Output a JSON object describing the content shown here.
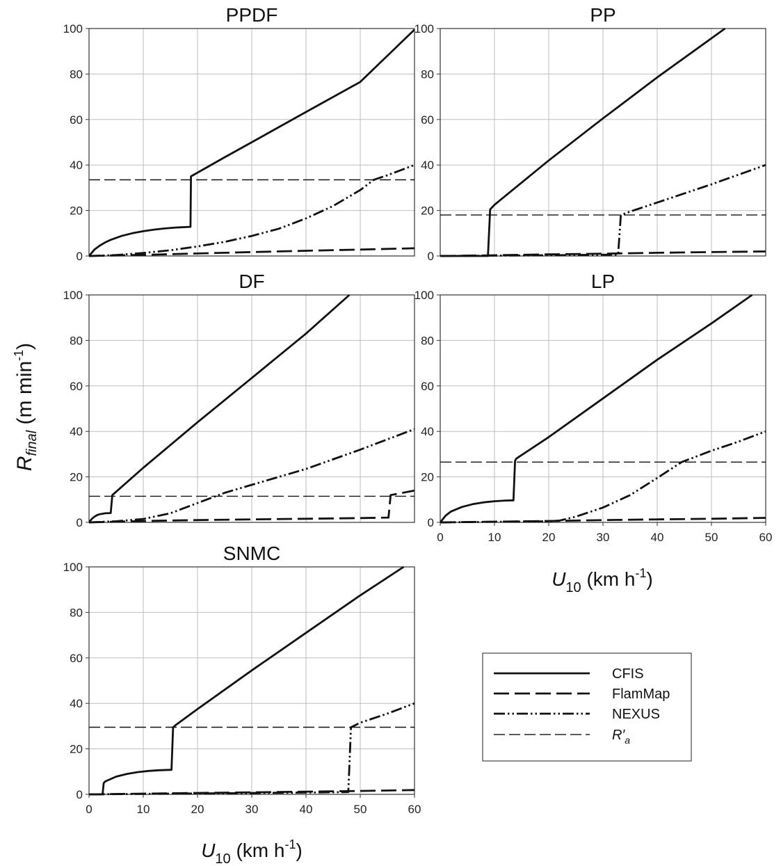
{
  "figure": {
    "y_label": {
      "main": "R",
      "sub": "final",
      "rest": " (m min",
      "sup": "-1",
      "close": ")"
    },
    "x_label": {
      "main": "U",
      "sub": "10",
      "rest": " (km h",
      "sup": "-1",
      "close": ")"
    }
  },
  "legend": {
    "entries": [
      {
        "key": "cfis",
        "label": "CFIS",
        "style": "solid"
      },
      {
        "key": "flammap",
        "label": "FlamMap",
        "style": "longdash"
      },
      {
        "key": "nexus",
        "label": "NEXUS",
        "style": "dashdotdot"
      },
      {
        "key": "ra",
        "label": "R′",
        "sub": "a",
        "style": "thindash"
      }
    ]
  },
  "chart_data": [
    {
      "type": "line",
      "title": "PPDF",
      "xlim": [
        0,
        60
      ],
      "ylim": [
        0,
        100
      ],
      "xticks": [
        0,
        10,
        20,
        30,
        40,
        50,
        60
      ],
      "yticks": [
        0,
        20,
        40,
        60,
        80,
        100
      ],
      "show_x_tick_labels": false,
      "grid": true,
      "series": [
        {
          "name": "CFIS",
          "x": [
            0,
            1,
            2,
            3,
            4,
            6,
            8,
            10,
            12,
            14,
            16,
            18.7,
            18.8,
            19,
            25,
            30,
            40,
            50,
            60
          ],
          "y": [
            0,
            2.8,
            4.6,
            6,
            7.1,
            8.8,
            10,
            10.9,
            11.6,
            12.1,
            12.5,
            12.8,
            35,
            35.3,
            43.4,
            50,
            63.3,
            76.5,
            99.5
          ]
        },
        {
          "name": "FlamMap",
          "x": [
            0,
            10,
            20,
            30,
            40,
            50,
            60
          ],
          "y": [
            0,
            0.5,
            1.1,
            1.7,
            2.3,
            2.8,
            3.4
          ]
        },
        {
          "name": "NEXUS",
          "x": [
            0,
            5,
            10,
            15,
            20,
            25,
            30,
            35,
            40,
            45,
            50,
            52.5,
            55,
            60
          ],
          "y": [
            0,
            0.4,
            1.3,
            2.5,
            4.2,
            6.2,
            8.8,
            12,
            16.5,
            22,
            29,
            33.5,
            35.5,
            40
          ]
        },
        {
          "name": "R′a",
          "x": [
            0,
            60
          ],
          "y": [
            33.5,
            33.5
          ]
        }
      ]
    },
    {
      "type": "line",
      "title": "PP",
      "xlim": [
        0,
        60
      ],
      "ylim": [
        0,
        100
      ],
      "xticks": [
        0,
        10,
        20,
        30,
        40,
        50,
        60
      ],
      "yticks": [
        0,
        20,
        40,
        60,
        80,
        100
      ],
      "show_x_tick_labels": false,
      "grid": true,
      "series": [
        {
          "name": "CFIS",
          "x": [
            0,
            8.8,
            9.2,
            10,
            20,
            30,
            40,
            52.5
          ],
          "y": [
            0,
            0,
            20.5,
            22.5,
            42,
            60.5,
            78.5,
            100
          ]
        },
        {
          "name": "FlamMap",
          "x": [
            0,
            10,
            20,
            30,
            40,
            50,
            60
          ],
          "y": [
            0,
            0.3,
            0.7,
            1,
            1.4,
            1.7,
            2
          ]
        },
        {
          "name": "NEXUS",
          "x": [
            0,
            20,
            32.8,
            33.3,
            35,
            40,
            50,
            60
          ],
          "y": [
            0,
            0.3,
            0.6,
            18,
            19.5,
            23.5,
            31.5,
            40
          ]
        },
        {
          "name": "R′a",
          "x": [
            0,
            60
          ],
          "y": [
            18,
            18
          ]
        }
      ]
    },
    {
      "type": "line",
      "title": "DF",
      "xlim": [
        0,
        60
      ],
      "ylim": [
        0,
        100
      ],
      "xticks": [
        0,
        10,
        20,
        30,
        40,
        50,
        60
      ],
      "yticks": [
        0,
        20,
        40,
        60,
        80,
        100
      ],
      "show_x_tick_labels": false,
      "grid": true,
      "series": [
        {
          "name": "CFIS",
          "x": [
            0,
            0.5,
            1,
            1.5,
            2,
            3,
            4,
            4.3,
            5,
            10,
            20,
            30,
            40,
            48
          ],
          "y": [
            0,
            1.5,
            2.5,
            3.2,
            3.6,
            4,
            4.1,
            12,
            13.5,
            24,
            44,
            63.5,
            83,
            100
          ]
        },
        {
          "name": "FlamMap",
          "x": [
            0,
            10,
            20,
            30,
            40,
            50,
            55.2,
            55.6,
            60
          ],
          "y": [
            0,
            0.6,
            1,
            1.3,
            1.6,
            1.9,
            2.1,
            12,
            14
          ]
        },
        {
          "name": "NEXUS",
          "x": [
            0,
            5,
            10,
            15,
            20,
            25,
            30,
            40,
            50,
            60
          ],
          "y": [
            0,
            0.5,
            1.5,
            4,
            8.5,
            13,
            16.5,
            23.5,
            32,
            41
          ]
        },
        {
          "name": "R′a",
          "x": [
            0,
            60
          ],
          "y": [
            11.5,
            11.5
          ]
        }
      ]
    },
    {
      "type": "line",
      "title": "LP",
      "xlim": [
        0,
        60
      ],
      "ylim": [
        0,
        100
      ],
      "xticks": [
        0,
        10,
        20,
        30,
        40,
        50,
        60
      ],
      "yticks": [
        0,
        20,
        40,
        60,
        80,
        100
      ],
      "show_x_tick_labels": true,
      "xlabel": "U10 (km h-1)",
      "grid": true,
      "series": [
        {
          "name": "CFIS",
          "x": [
            0,
            1,
            2,
            4,
            6,
            8,
            10,
            12,
            13.5,
            13.8,
            14,
            20,
            30,
            40,
            50,
            57.5
          ],
          "y": [
            0,
            3,
            4.8,
            6.8,
            8,
            8.8,
            9.3,
            9.6,
            9.7,
            27,
            28,
            37.5,
            54.5,
            71.5,
            87.5,
            100
          ]
        },
        {
          "name": "FlamMap",
          "x": [
            0,
            10,
            20,
            30,
            40,
            50,
            60
          ],
          "y": [
            0,
            0.3,
            0.6,
            1,
            1.3,
            1.6,
            2
          ]
        },
        {
          "name": "NEXUS",
          "x": [
            0,
            20,
            22,
            25,
            30,
            35,
            40,
            44.5,
            50,
            55,
            60
          ],
          "y": [
            0,
            0.5,
            0.8,
            2.5,
            6.5,
            12,
            19.5,
            26.5,
            31.5,
            35.5,
            40
          ]
        },
        {
          "name": "R′a",
          "x": [
            0,
            60
          ],
          "y": [
            26.5,
            26.5
          ]
        }
      ]
    },
    {
      "type": "line",
      "title": "SNMC",
      "xlim": [
        0,
        60
      ],
      "ylim": [
        0,
        100
      ],
      "xticks": [
        0,
        10,
        20,
        30,
        40,
        50,
        60
      ],
      "yticks": [
        0,
        20,
        40,
        60,
        80,
        100
      ],
      "show_x_tick_labels": true,
      "xlabel": "U10 (km h-1)",
      "grid": true,
      "series": [
        {
          "name": "CFIS",
          "x": [
            0,
            2.5,
            2.7,
            3,
            5,
            7,
            9,
            11,
            13,
            15.2,
            15.5,
            16,
            20,
            30,
            40,
            50,
            58
          ],
          "y": [
            0,
            0,
            5,
            5.7,
            7.8,
            9,
            9.8,
            10.3,
            10.6,
            10.8,
            29.5,
            30.5,
            37.5,
            54.5,
            71,
            87.5,
            100
          ]
        },
        {
          "name": "FlamMap",
          "x": [
            0,
            10,
            20,
            30,
            40,
            50,
            60
          ],
          "y": [
            0,
            0.3,
            0.6,
            0.9,
            1.2,
            1.5,
            1.9
          ]
        },
        {
          "name": "NEXUS",
          "x": [
            0,
            20,
            40,
            47.8,
            48.3,
            50,
            55,
            60
          ],
          "y": [
            0,
            0.4,
            0.8,
            1,
            29.5,
            31.5,
            35.5,
            40
          ]
        },
        {
          "name": "R′a",
          "x": [
            0,
            60
          ],
          "y": [
            29.5,
            29.5
          ]
        }
      ]
    }
  ]
}
